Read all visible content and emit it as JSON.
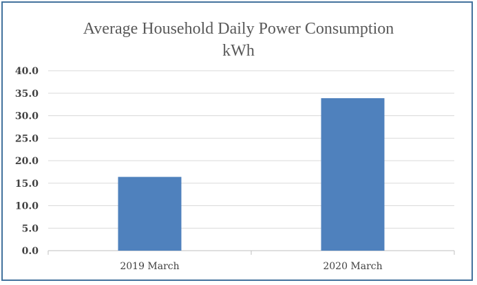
{
  "chart_data": {
    "type": "bar",
    "title_line1": "Average Household Daily Power Consumption",
    "title_line2": "kWh",
    "categories": [
      "2019 March",
      "2020 March"
    ],
    "values": [
      16.4,
      33.9
    ],
    "ylim": [
      0,
      40
    ],
    "yticks": [
      "0.0",
      "5.0",
      "10.0",
      "15.0",
      "20.0",
      "25.0",
      "30.0",
      "35.0",
      "40.0"
    ],
    "grid": true,
    "legend": "none",
    "bar_color": "#4f81bd",
    "border_color": "#41719c",
    "grid_color": "#d9d9d9"
  }
}
